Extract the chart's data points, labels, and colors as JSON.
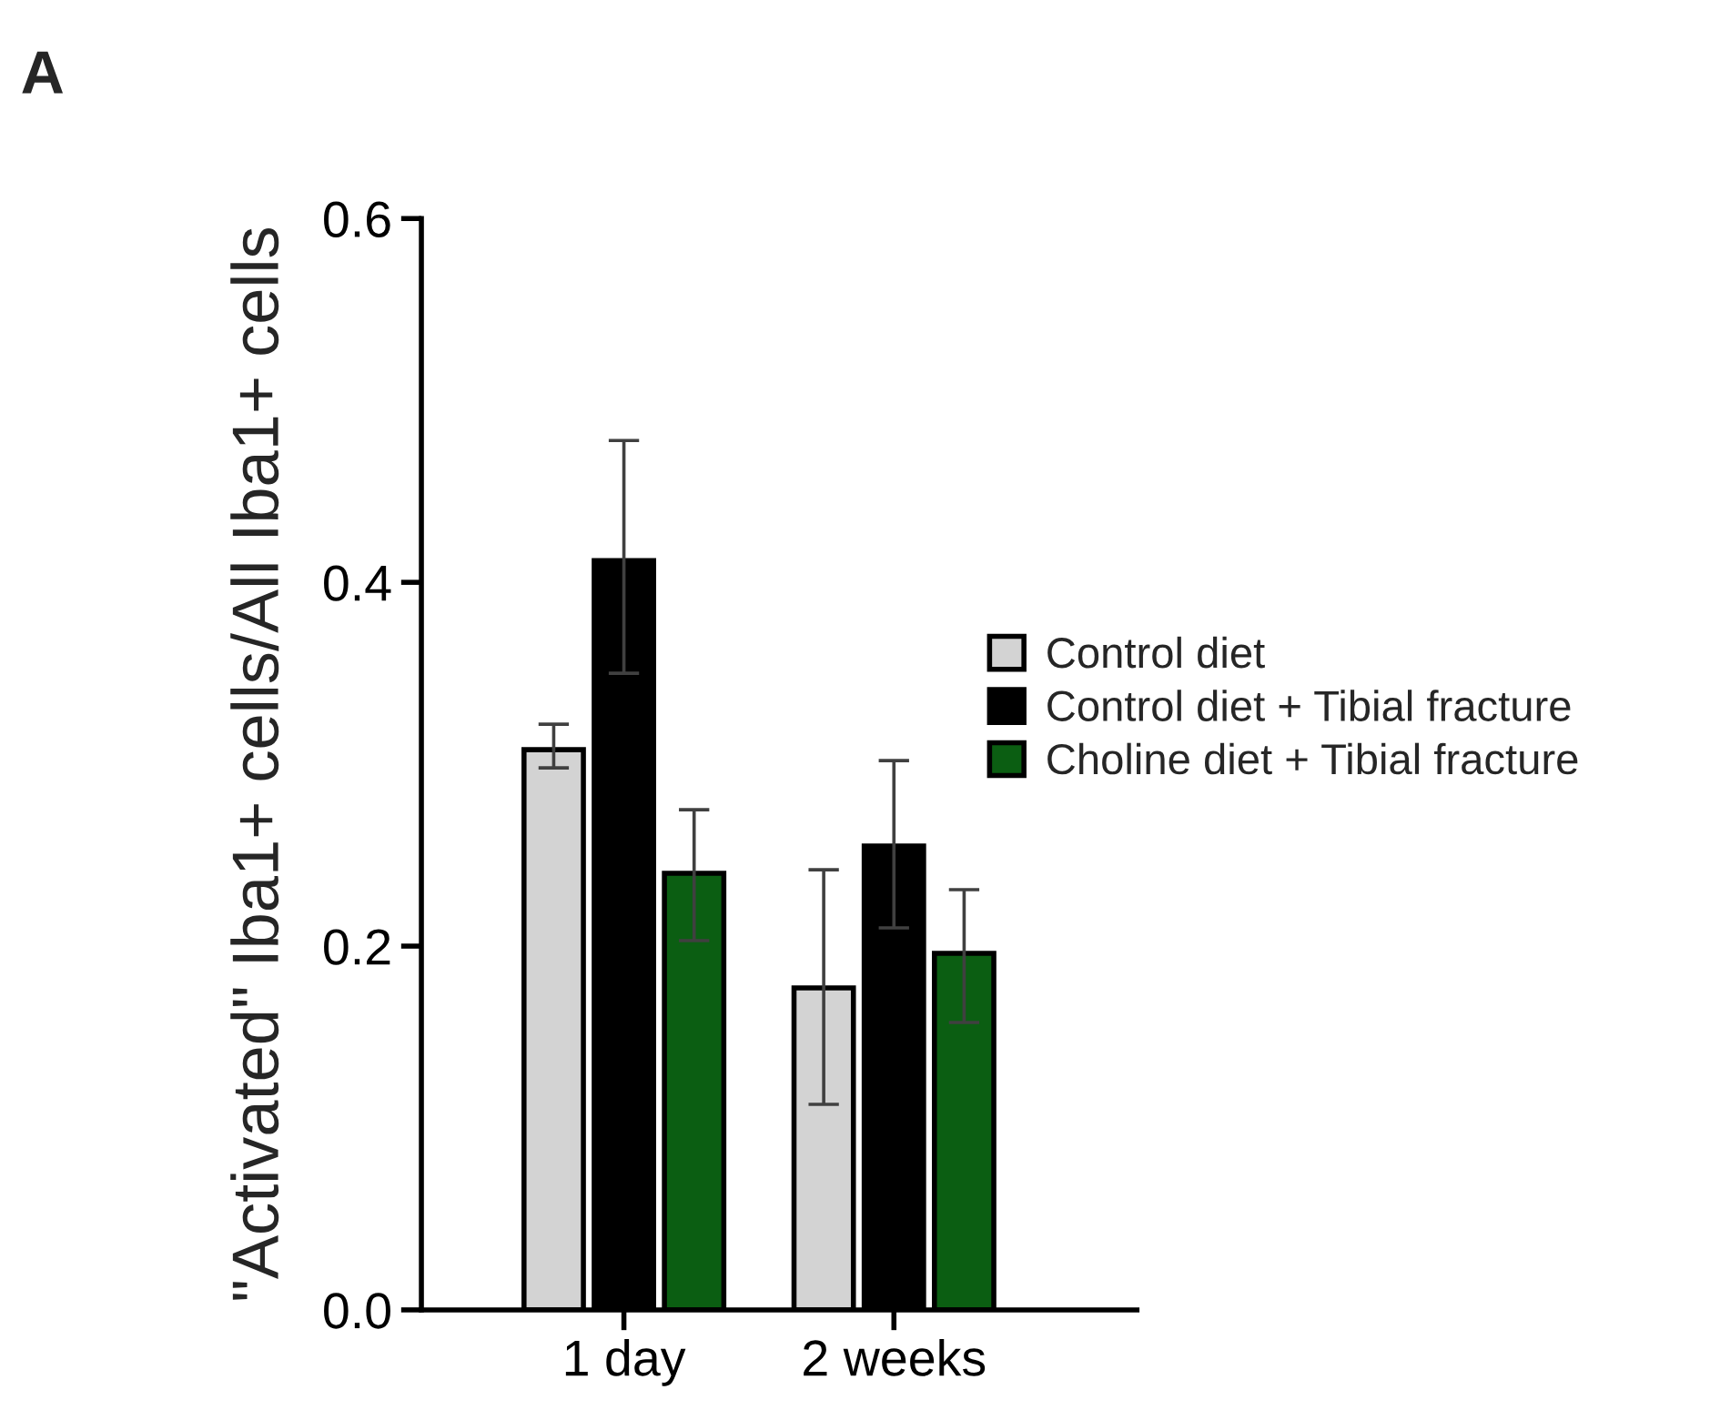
{
  "chart_data": {
    "type": "bar",
    "ylabel": "\"Activated\" Iba1+ cells/All Iba1+ cells",
    "annotations": [
      "A"
    ],
    "categories": [
      "1 day",
      "2 weeks"
    ],
    "series": [
      {
        "name": "Control diet",
        "color": "#d3d3d3",
        "values": [
          0.308,
          0.177
        ],
        "errors": [
          [
            0.298,
            0.322
          ],
          [
            0.113,
            0.242
          ]
        ]
      },
      {
        "name": "Control diet + Tibial fracture",
        "color": "#000000",
        "values": [
          0.412,
          0.255
        ],
        "errors": [
          [
            0.35,
            0.478
          ],
          [
            0.21,
            0.302
          ]
        ]
      },
      {
        "name": "Choline diet + Tibial fracture",
        "color": "#0b5e12",
        "values": [
          0.24,
          0.196
        ],
        "errors": [
          [
            0.203,
            0.275
          ],
          [
            0.158,
            0.231
          ]
        ]
      }
    ],
    "ylim": [
      0,
      0.6
    ],
    "yticks": [
      {
        "value": 0,
        "label": "0.0"
      },
      {
        "value": 0.2,
        "label": "0.2"
      },
      {
        "value": 0.4,
        "label": "0.4"
      },
      {
        "value": 0.6,
        "label": "0.6"
      }
    ],
    "grid": false,
    "legend": "right"
  }
}
